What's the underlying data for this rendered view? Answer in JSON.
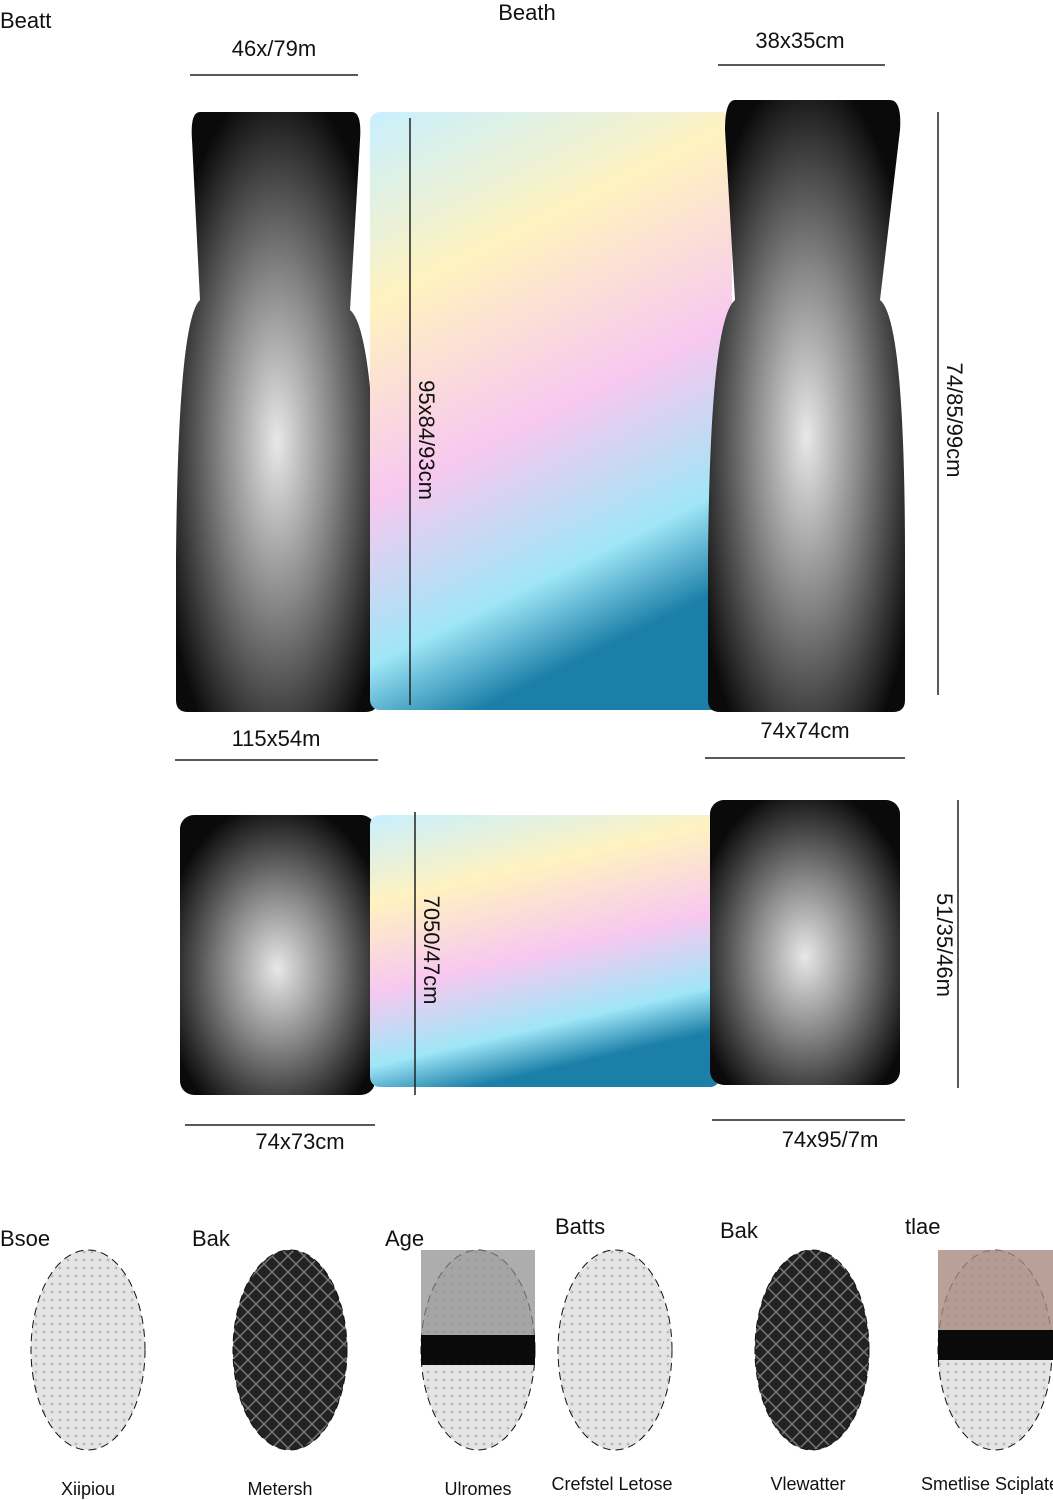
{
  "header": {
    "left": "Beatt",
    "center": "Beath"
  },
  "dimensions": [
    "46x/79m",
    "38x35cm",
    "95x84/93cm",
    "74/85/99cm",
    "115x54m",
    "74x74cm",
    "7050/47cm",
    "51/35/46m",
    "74x73cm",
    "74x95/7m"
  ],
  "swatches": [
    {
      "title": "Bsoe",
      "caption": "Xiipiou"
    },
    {
      "title": "Bak",
      "caption": "Metersh"
    },
    {
      "title": "Age",
      "caption": "Ulromes"
    },
    {
      "title": "Batts",
      "caption": "Crefstel Letose"
    },
    {
      "title": "Bak",
      "caption": "Vlewatter"
    },
    {
      "title": "tlae",
      "caption": "Smetlise Sciplate"
    }
  ]
}
